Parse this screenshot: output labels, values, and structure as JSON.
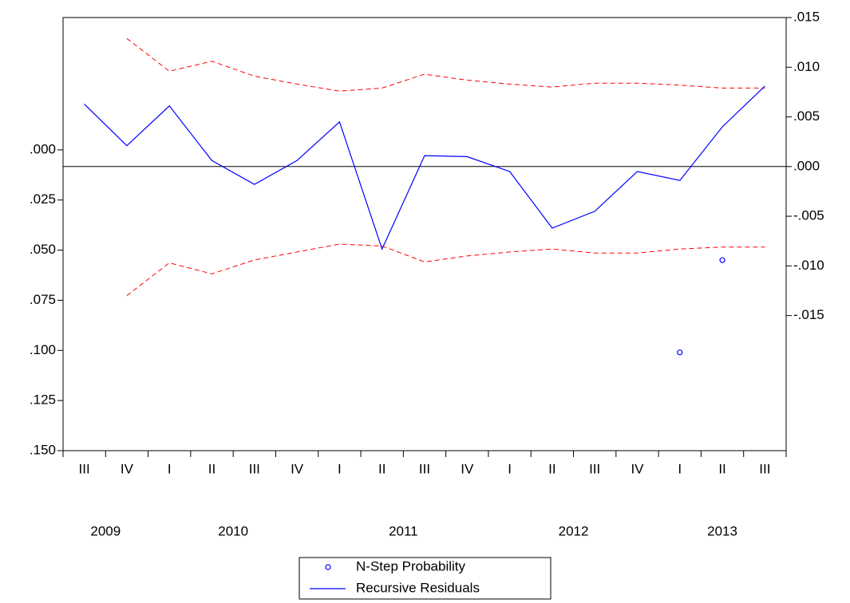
{
  "chart_data": {
    "type": "line",
    "categories": [
      "III",
      "IV",
      "I",
      "II",
      "III",
      "IV",
      "I",
      "II",
      "III",
      "IV",
      "I",
      "II",
      "III",
      "IV",
      "I",
      "II",
      "III"
    ],
    "years": [
      "2009",
      "2010",
      "2011",
      "2012",
      "2013"
    ],
    "ylim": [
      -0.066,
      0.15
    ],
    "y_inverted": true,
    "yticks": [
      {
        "value": 0,
        "label": ".000"
      },
      {
        "value": 0.025,
        "label": ".025"
      },
      {
        "value": 0.05,
        "label": ".050"
      },
      {
        "value": 0.075,
        "label": ".075"
      },
      {
        "value": 0.1,
        "label": ".100"
      },
      {
        "value": 0.125,
        "label": ".125"
      },
      {
        "value": 0.15,
        "label": ".150"
      }
    ],
    "y2lim": [
      -0.0286,
      0.015
    ],
    "y2ticks": [
      {
        "value": 0.015,
        "label": ".015"
      },
      {
        "value": 0.01,
        "label": ".010"
      },
      {
        "value": 0.005,
        "label": ".005"
      },
      {
        "value": 0,
        "label": ".000"
      },
      {
        "value": -0.005,
        "label": "-.005"
      },
      {
        "value": -0.01,
        "label": "-.010"
      },
      {
        "value": -0.015,
        "label": "-.015"
      }
    ],
    "series": [
      {
        "name": "N-Step Probability",
        "color": "#0000ff",
        "marker": "circle",
        "values": [
          null,
          null,
          null,
          null,
          null,
          null,
          null,
          null,
          null,
          null,
          null,
          null,
          null,
          null,
          0.101,
          0.055,
          null
        ]
      },
      {
        "name": "Recursive Residuals",
        "color": "#0000ff",
        "axis": "y2",
        "values": [
          0.0063,
          0.0021,
          0.0061,
          0.0006,
          -0.0018,
          0.0006,
          0.0045,
          -0.0083,
          0.0011,
          0.001,
          -0.0005,
          -0.0062,
          -0.0045,
          -0.0005,
          -0.0014,
          0.004,
          0.0081
        ]
      }
    ],
    "bands": {
      "color": "#ff0000",
      "axis": "y2",
      "upper": [
        null,
        0.0129,
        0.0096,
        0.0106,
        0.0091,
        0.0083,
        0.0076,
        0.0079,
        0.0093,
        0.0087,
        0.0083,
        0.008,
        0.0084,
        0.0084,
        0.0082,
        0.0079,
        0.0079
      ],
      "lower": [
        null,
        -0.013,
        -0.0097,
        -0.0108,
        -0.0094,
        -0.0086,
        -0.0078,
        -0.008,
        -0.0096,
        -0.009,
        -0.0086,
        -0.0083,
        -0.0087,
        -0.0087,
        -0.0083,
        -0.0081,
        -0.0081
      ]
    },
    "zero_line": true
  }
}
